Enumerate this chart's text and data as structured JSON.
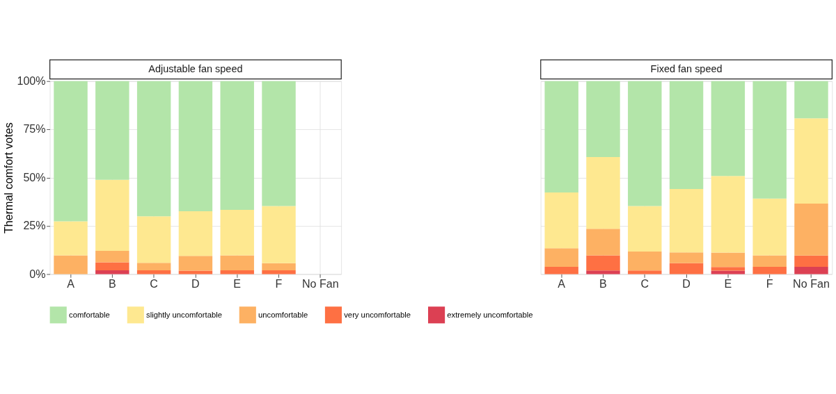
{
  "chart_data": [
    {
      "type": "bar",
      "title": "Adjustable fan speed",
      "ylabel": "Thermal comfort votes",
      "stacked": true,
      "grid": true,
      "legend": "bottom",
      "categories": [
        "A",
        "B",
        "C",
        "D",
        "E",
        "F",
        "No Fan"
      ],
      "ylim": [
        0,
        100
      ],
      "yticks": [
        {
          "value": 0,
          "label": "0%"
        },
        {
          "value": 25,
          "label": "25%"
        },
        {
          "value": 50,
          "label": "50%"
        },
        {
          "value": 75,
          "label": "75%"
        },
        {
          "value": 100,
          "label": "100%"
        }
      ],
      "series": [
        {
          "name": "extremely uncomfortable",
          "color": "#dc4053",
          "values": [
            0,
            2.0,
            0,
            0,
            0,
            0,
            null
          ]
        },
        {
          "name": "very uncomfortable",
          "color": "#fe7043",
          "values": [
            0,
            4.1,
            2.0,
            1.8,
            2.0,
            2.0,
            null
          ]
        },
        {
          "name": "uncomfortable",
          "color": "#fdb163",
          "values": [
            9.7,
            6.0,
            3.9,
            7.7,
            7.7,
            3.7,
            null
          ]
        },
        {
          "name": "slightly uncomfortable",
          "color": "#fee890",
          "values": [
            17.7,
            36.8,
            24.1,
            23.1,
            23.6,
            29.6,
            null
          ]
        },
        {
          "name": "comfortable",
          "color": "#b3e5a9",
          "values": [
            72.6,
            51.1,
            70.0,
            67.4,
            66.7,
            64.7,
            null
          ]
        }
      ]
    },
    {
      "type": "bar",
      "title": "Fixed fan speed",
      "stacked": true,
      "grid": true,
      "tick_labels": "x",
      "categories": [
        "A",
        "B",
        "C",
        "D",
        "E",
        "F",
        "No Fan"
      ],
      "ylim": [
        0,
        100
      ],
      "yticks": [
        0,
        25,
        50,
        75,
        100
      ],
      "series": [
        {
          "color": "#dc4053",
          "values": [
            0,
            1.9,
            0,
            0,
            1.8,
            0,
            3.8
          ]
        },
        {
          "color": "#fe7043",
          "values": [
            3.8,
            7.8,
            1.9,
            5.7,
            1.9,
            3.8,
            5.8
          ]
        },
        {
          "color": "#fdb163",
          "values": [
            9.6,
            13.8,
            9.8,
            5.6,
            7.5,
            5.9,
            27.0
          ]
        },
        {
          "color": "#fee890",
          "values": [
            28.9,
            37.2,
            23.6,
            32.8,
            39.7,
            29.5,
            44.2
          ]
        },
        {
          "color": "#b3e5a9",
          "values": [
            57.7,
            39.3,
            64.7,
            55.9,
            49.1,
            60.8,
            19.2
          ]
        }
      ]
    }
  ]
}
